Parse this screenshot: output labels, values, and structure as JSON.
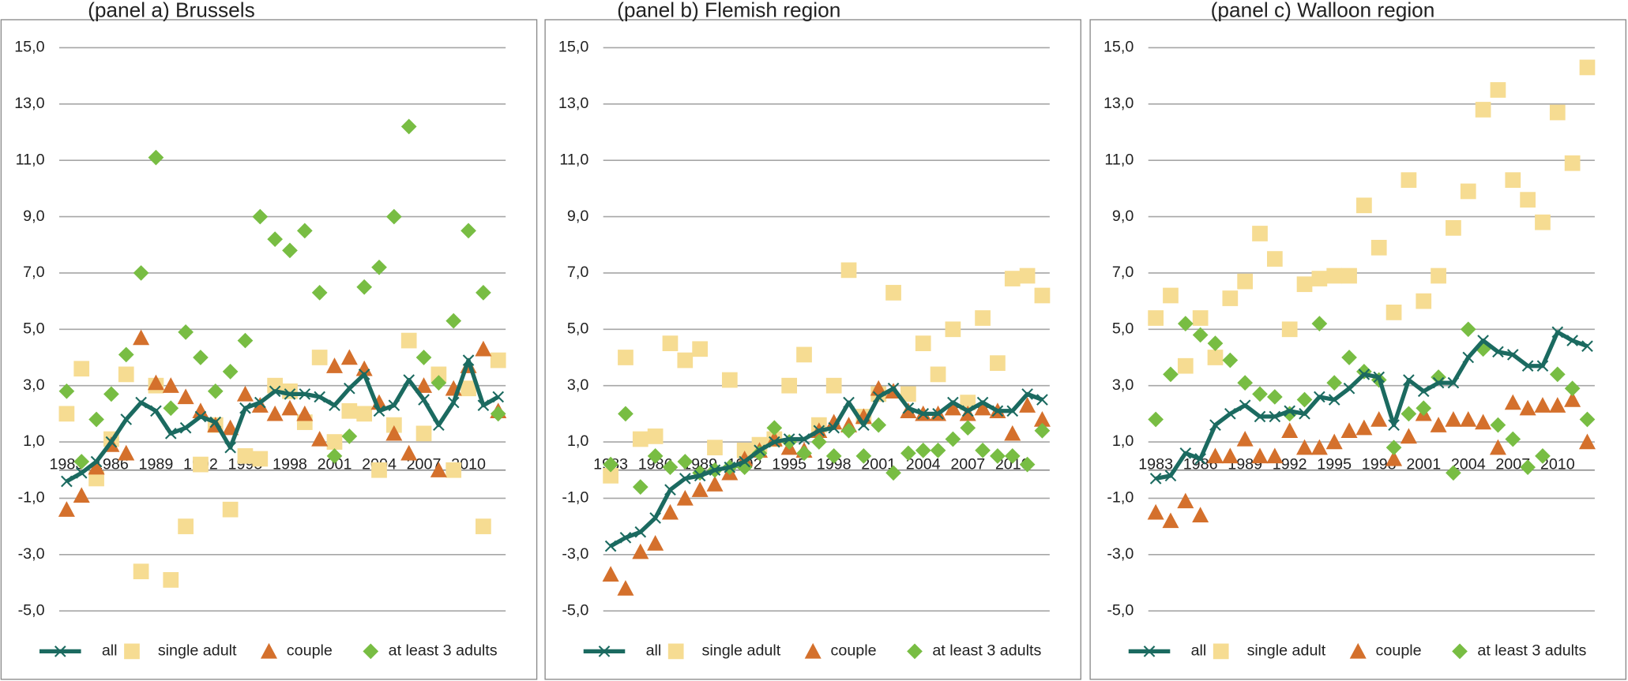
{
  "chart_data": [
    {
      "type": "line",
      "title": "(panel a) Brussels",
      "categories": [
        "1983",
        null,
        null,
        "1986",
        null,
        null,
        "1989",
        null,
        null,
        "1992",
        null,
        null,
        "1995",
        null,
        null,
        "1998",
        null,
        null,
        "2001",
        null,
        null,
        "2004",
        null,
        null,
        "2007",
        null,
        null,
        "2010",
        null,
        null
      ],
      "ylim": [
        -5,
        15
      ],
      "yticks": [
        {
          "value": 15,
          "label": "15,0"
        },
        {
          "value": 13,
          "label": "13,0"
        },
        {
          "value": 11,
          "label": "11,0"
        },
        {
          "value": 9,
          "label": "9,0"
        },
        {
          "value": 7,
          "label": "7,0"
        },
        {
          "value": 5,
          "label": "5,0"
        },
        {
          "value": 3,
          "label": "3,0"
        },
        {
          "value": 1,
          "label": "1,0"
        },
        {
          "value": -1,
          "label": "-1,0"
        },
        {
          "value": -3,
          "label": "-3,0"
        },
        {
          "value": -5,
          "label": "-5,0"
        }
      ],
      "grid": true,
      "legend": "bottom",
      "series": [
        {
          "name": "all",
          "color": "#1b6a60",
          "marker": "x",
          "line": true,
          "values": [
            -0.4,
            -0.1,
            0.3,
            1.0,
            1.8,
            2.4,
            2.1,
            1.3,
            1.5,
            1.9,
            1.7,
            0.8,
            2.2,
            2.4,
            2.8,
            2.7,
            2.7,
            2.6,
            2.3,
            2.9,
            3.4,
            2.1,
            2.3,
            3.2,
            2.5,
            1.6,
            2.4,
            3.9,
            2.3,
            2.6
          ]
        },
        {
          "name": "single adult",
          "color": "#f6dc92",
          "marker": "square",
          "line": false,
          "values": [
            2.0,
            3.6,
            -0.3,
            1.1,
            3.4,
            -3.6,
            3.0,
            -3.9,
            -2.0,
            0.2,
            1.6,
            -1.4,
            0.5,
            0.4,
            3.0,
            2.8,
            1.7,
            4.0,
            1.0,
            2.1,
            2.0,
            0.0,
            1.6,
            4.6,
            1.3,
            3.4,
            0.0,
            2.9,
            -2.0,
            3.9
          ]
        },
        {
          "name": "couple",
          "color": "#d4702c",
          "marker": "triangle",
          "line": false,
          "values": [
            -1.4,
            -0.9,
            0.1,
            0.9,
            0.6,
            4.7,
            3.1,
            3.0,
            2.6,
            2.1,
            1.6,
            1.5,
            2.7,
            2.3,
            2.0,
            2.2,
            2.0,
            1.1,
            3.7,
            4.0,
            3.6,
            2.4,
            1.3,
            0.6,
            3.0,
            0.0,
            2.9,
            3.7,
            4.3,
            2.1
          ]
        },
        {
          "name": "at least 3 adults",
          "color": "#78bd43",
          "marker": "diamond",
          "line": false,
          "values": [
            2.8,
            0.3,
            1.8,
            2.7,
            4.1,
            7.0,
            11.1,
            2.2,
            4.9,
            4.0,
            2.8,
            3.5,
            4.6,
            9.0,
            8.2,
            7.8,
            8.5,
            6.3,
            0.5,
            1.2,
            6.5,
            7.2,
            9.0,
            12.2,
            4.0,
            3.1,
            5.3,
            8.5,
            6.3,
            2.0
          ]
        }
      ]
    },
    {
      "type": "line",
      "title": "(panel b) Flemish region",
      "categories": [
        "1983",
        null,
        null,
        "1986",
        null,
        null,
        "1989",
        null,
        null,
        "1992",
        null,
        null,
        "1995",
        null,
        null,
        "1998",
        null,
        null,
        "2001",
        null,
        null,
        "2004",
        null,
        null,
        "2007",
        null,
        null,
        "2010",
        null,
        null
      ],
      "ylim": [
        -5,
        15
      ],
      "yticks": [
        {
          "value": 15,
          "label": "15,0"
        },
        {
          "value": 13,
          "label": "13,0"
        },
        {
          "value": 11,
          "label": "11,0"
        },
        {
          "value": 9,
          "label": "9,0"
        },
        {
          "value": 7,
          "label": "7,0"
        },
        {
          "value": 5,
          "label": "5,0"
        },
        {
          "value": 3,
          "label": "3,0"
        },
        {
          "value": 1,
          "label": "1,0"
        },
        {
          "value": -1,
          "label": "-1,0"
        },
        {
          "value": -3,
          "label": "-3,0"
        },
        {
          "value": -5,
          "label": "-5,0"
        }
      ],
      "grid": true,
      "legend": "bottom",
      "series": [
        {
          "name": "all",
          "color": "#1b6a60",
          "marker": "x",
          "line": true,
          "values": [
            -2.7,
            -2.4,
            -2.2,
            -1.7,
            -0.7,
            -0.3,
            -0.2,
            0.0,
            0.1,
            0.3,
            0.7,
            1.0,
            1.1,
            1.1,
            1.4,
            1.5,
            2.4,
            1.6,
            2.6,
            2.9,
            2.2,
            2.0,
            2.0,
            2.4,
            2.1,
            2.4,
            2.1,
            2.1,
            2.7,
            2.5
          ]
        },
        {
          "name": "single adult",
          "color": "#f6dc92",
          "marker": "square",
          "line": false,
          "values": [
            -0.2,
            4.0,
            1.1,
            1.2,
            4.5,
            3.9,
            4.3,
            0.8,
            3.2,
            0.7,
            0.9,
            1.1,
            3.0,
            4.1,
            1.6,
            3.0,
            7.1,
            1.9,
            2.7,
            6.3,
            2.7,
            4.5,
            3.4,
            5.0,
            2.4,
            5.4,
            3.8,
            6.8,
            6.9,
            6.2
          ]
        },
        {
          "name": "couple",
          "color": "#d4702c",
          "marker": "triangle",
          "line": false,
          "values": [
            -3.7,
            -4.2,
            -2.9,
            -2.6,
            -1.5,
            -1.0,
            -0.7,
            -0.5,
            -0.1,
            0.4,
            0.7,
            1.1,
            0.8,
            0.7,
            1.4,
            1.7,
            1.6,
            1.9,
            2.9,
            2.8,
            2.1,
            2.0,
            2.0,
            2.2,
            2.0,
            2.2,
            2.1,
            1.3,
            2.3,
            1.8
          ]
        },
        {
          "name": "at least 3 adults",
          "color": "#78bd43",
          "marker": "diamond",
          "line": false,
          "values": [
            0.2,
            2.0,
            -0.6,
            0.5,
            0.1,
            0.3,
            -0.1,
            0.0,
            0.1,
            0.1,
            0.6,
            1.5,
            1.0,
            0.6,
            1.0,
            0.5,
            1.4,
            0.5,
            1.6,
            -0.1,
            0.6,
            0.7,
            0.7,
            1.1,
            1.5,
            0.7,
            0.5,
            0.5,
            0.2,
            1.4
          ]
        }
      ]
    },
    {
      "type": "line",
      "title": "(panel c) Walloon region",
      "categories": [
        "1983",
        null,
        null,
        "1986",
        null,
        null,
        "1989",
        null,
        null,
        "1992",
        null,
        null,
        "1995",
        null,
        null,
        "1998",
        null,
        null,
        "2001",
        null,
        null,
        "2004",
        null,
        null,
        "2007",
        null,
        null,
        "2010",
        null,
        null
      ],
      "ylim": [
        -5,
        15
      ],
      "yticks": [
        {
          "value": 15,
          "label": "15,0"
        },
        {
          "value": 13,
          "label": "13,0"
        },
        {
          "value": 11,
          "label": "11,0"
        },
        {
          "value": 9,
          "label": "9,0"
        },
        {
          "value": 7,
          "label": "7,0"
        },
        {
          "value": 5,
          "label": "5,0"
        },
        {
          "value": 3,
          "label": "3,0"
        },
        {
          "value": 1,
          "label": "1,0"
        },
        {
          "value": -1,
          "label": "-1,0"
        },
        {
          "value": -3,
          "label": "-3,0"
        },
        {
          "value": -5,
          "label": "-5,0"
        }
      ],
      "grid": true,
      "legend": "bottom",
      "series": [
        {
          "name": "all",
          "color": "#1b6a60",
          "marker": "x",
          "line": true,
          "values": [
            -0.3,
            -0.2,
            0.6,
            0.4,
            1.6,
            2.0,
            2.3,
            1.9,
            1.9,
            2.1,
            2.0,
            2.6,
            2.5,
            2.9,
            3.4,
            3.3,
            1.6,
            3.2,
            2.8,
            3.1,
            3.1,
            4.0,
            4.6,
            4.2,
            4.1,
            3.7,
            3.7,
            4.9,
            4.6,
            4.4
          ]
        },
        {
          "name": "single adult",
          "color": "#f6dc92",
          "marker": "square",
          "line": false,
          "values": [
            5.4,
            6.2,
            3.7,
            5.4,
            4.0,
            6.1,
            6.7,
            8.4,
            7.5,
            5.0,
            6.6,
            6.8,
            6.9,
            6.9,
            9.4,
            7.9,
            5.6,
            10.3,
            6.0,
            6.9,
            8.6,
            9.9,
            12.8,
            13.5,
            10.3,
            9.6,
            8.8,
            12.7,
            10.9,
            14.3
          ]
        },
        {
          "name": "couple",
          "color": "#d4702c",
          "marker": "triangle",
          "line": false,
          "values": [
            -1.5,
            -1.8,
            -1.1,
            -1.6,
            0.5,
            0.5,
            1.1,
            0.5,
            0.5,
            1.4,
            0.8,
            0.8,
            1.0,
            1.4,
            1.5,
            1.8,
            0.4,
            1.2,
            2.0,
            1.6,
            1.8,
            1.8,
            1.7,
            0.8,
            2.4,
            2.2,
            2.3,
            2.3,
            2.5,
            1.0
          ]
        },
        {
          "name": "at least 3 adults",
          "color": "#78bd43",
          "marker": "diamond",
          "line": false,
          "values": [
            1.8,
            3.4,
            5.2,
            4.8,
            4.5,
            3.9,
            3.1,
            2.7,
            2.6,
            2.0,
            2.5,
            5.2,
            3.1,
            4.0,
            3.5,
            3.2,
            0.8,
            2.0,
            2.2,
            3.3,
            -0.1,
            5.0,
            4.3,
            1.6,
            1.1,
            0.1,
            0.5,
            3.4,
            2.9,
            1.8
          ]
        }
      ]
    }
  ]
}
